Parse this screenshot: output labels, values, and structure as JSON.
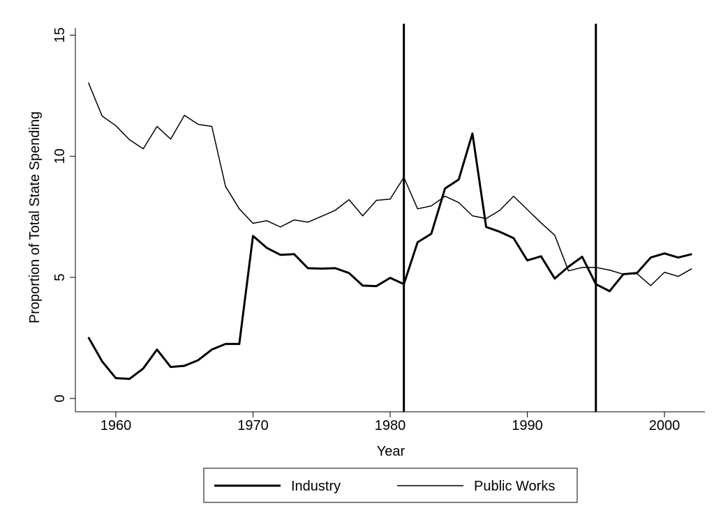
{
  "chart_data": {
    "type": "line",
    "x_label": "Year",
    "y_label": "Proportion of Total State Spending",
    "x": [
      1958,
      1959,
      1960,
      1961,
      1962,
      1963,
      1964,
      1965,
      1966,
      1967,
      1968,
      1969,
      1970,
      1971,
      1972,
      1973,
      1974,
      1975,
      1976,
      1977,
      1978,
      1979,
      1980,
      1981,
      1982,
      1983,
      1984,
      1985,
      1986,
      1987,
      1988,
      1989,
      1990,
      1991,
      1992,
      1993,
      1994,
      1995,
      1996,
      1997,
      1998,
      1999,
      2000,
      2001,
      2002
    ],
    "series": [
      {
        "name": "Industry",
        "color": "#000000",
        "width": 3,
        "values": [
          2.53,
          1.53,
          0.84,
          0.81,
          1.24,
          2.02,
          1.3,
          1.35,
          1.58,
          2.02,
          2.25,
          2.25,
          6.71,
          6.22,
          5.93,
          5.96,
          5.38,
          5.36,
          5.38,
          5.18,
          4.66,
          4.64,
          4.98,
          4.72,
          6.45,
          6.8,
          8.67,
          9.04,
          10.94,
          7.08,
          6.88,
          6.62,
          5.7,
          5.87,
          4.95,
          5.44,
          5.85,
          4.72,
          4.43,
          5.13,
          5.18,
          5.82,
          5.99,
          5.82,
          5.96
        ]
      },
      {
        "name": "Public Works",
        "color": "#000000",
        "width": 1.5,
        "values": [
          13.04,
          11.66,
          11.26,
          10.68,
          10.31,
          11.23,
          10.71,
          11.69,
          11.32,
          11.23,
          8.75,
          7.83,
          7.23,
          7.34,
          7.08,
          7.37,
          7.28,
          7.52,
          7.77,
          8.21,
          7.54,
          8.18,
          8.23,
          9.13,
          7.83,
          7.95,
          8.35,
          8.09,
          7.54,
          7.43,
          7.77,
          8.35,
          7.8,
          7.25,
          6.74,
          5.27,
          5.41,
          5.41,
          5.3,
          5.13,
          5.15,
          4.66,
          5.21,
          5.04,
          5.36
        ]
      }
    ],
    "vlines": [
      1981,
      1995
    ],
    "xlim": [
      1957.05,
      2002.95
    ],
    "xticks": [
      1960,
      1970,
      1980,
      1990,
      2000
    ],
    "ylim": [
      -0.55,
      15.3
    ],
    "yticks": [
      0,
      5,
      10,
      15
    ],
    "legend": "bottom"
  }
}
